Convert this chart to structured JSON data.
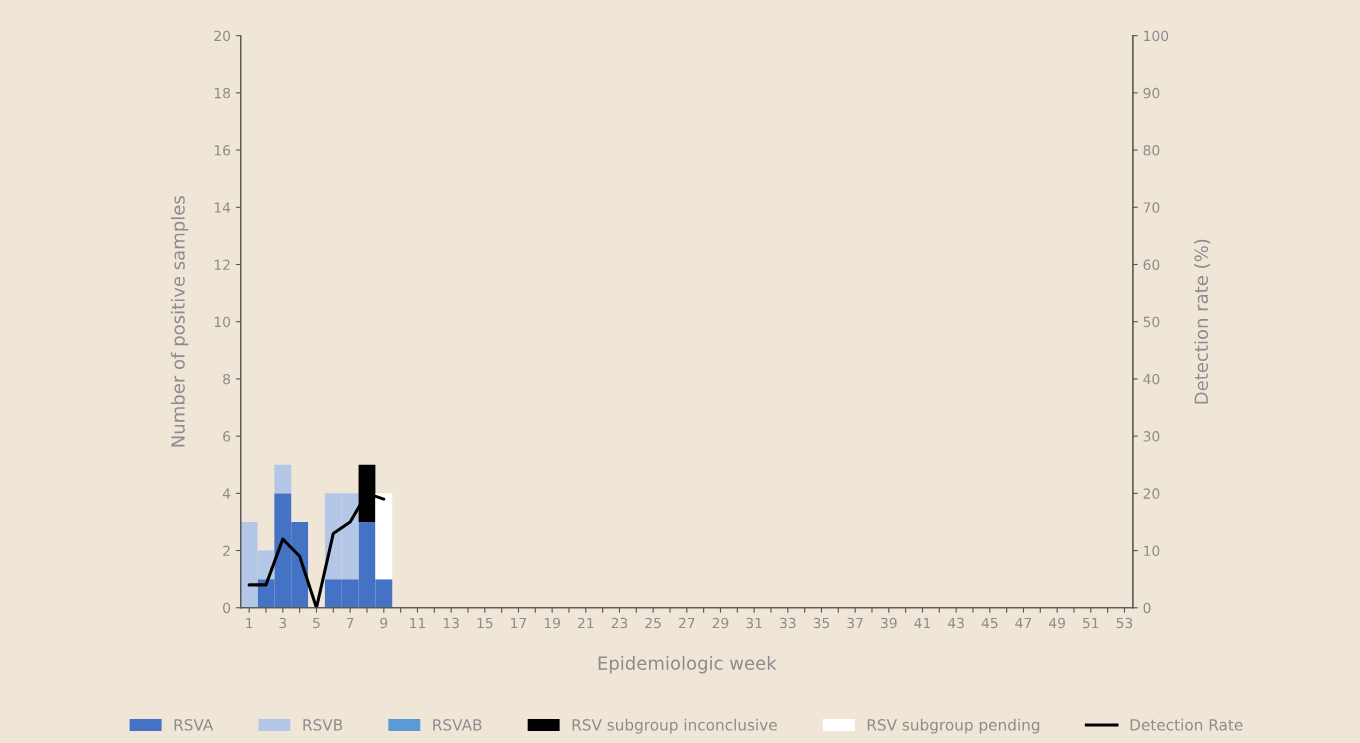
{
  "chart_data": {
    "type": "bar",
    "stacked": true,
    "xlabel": "Epidemiologic week",
    "ylabel": "Number of positive samples",
    "y2label": "Detection rate (%)",
    "categories": [
      "1",
      null,
      "3",
      null,
      "5",
      null,
      "7",
      null,
      "9",
      null,
      "11",
      null,
      "13",
      null,
      "15",
      null,
      "17",
      null,
      "19",
      null,
      "21",
      null,
      "23",
      null,
      "25",
      null,
      "27",
      null,
      "29",
      null,
      "31",
      null,
      "33",
      null,
      "35",
      null,
      "37",
      null,
      "39",
      null,
      "41",
      null,
      "43",
      null,
      "45",
      null,
      "47",
      null,
      "49",
      null,
      "51",
      null,
      "53"
    ],
    "ylim": [
      0,
      20
    ],
    "yticks": [
      0,
      2,
      4,
      6,
      8,
      10,
      12,
      14,
      16,
      18,
      20
    ],
    "y2lim": [
      0,
      100
    ],
    "y2ticks": [
      0,
      10,
      20,
      30,
      40,
      50,
      60,
      70,
      80,
      90,
      100
    ],
    "legend": "bottom",
    "grid": false,
    "series": [
      {
        "name": "RSVA",
        "color": "#4472c4",
        "values": [
          0,
          1,
          4,
          3,
          0,
          1,
          1,
          3,
          1,
          null,
          null,
          null,
          null,
          null,
          null,
          null,
          null,
          null,
          null,
          null,
          null,
          null,
          null,
          null,
          null,
          null,
          null,
          null,
          null,
          null,
          null,
          null,
          null,
          null,
          null,
          null,
          null,
          null,
          null,
          null,
          null,
          null,
          null,
          null,
          null,
          null,
          null,
          null,
          null,
          null,
          null,
          null,
          null
        ]
      },
      {
        "name": "RSVB",
        "color": "#b4c7e7",
        "values": [
          3,
          1,
          1,
          0,
          0,
          3,
          3,
          0,
          0,
          null,
          null,
          null,
          null,
          null,
          null,
          null,
          null,
          null,
          null,
          null,
          null,
          null,
          null,
          null,
          null,
          null,
          null,
          null,
          null,
          null,
          null,
          null,
          null,
          null,
          null,
          null,
          null,
          null,
          null,
          null,
          null,
          null,
          null,
          null,
          null,
          null,
          null,
          null,
          null,
          null,
          null,
          null,
          null
        ]
      },
      {
        "name": "RSVAB",
        "color": "#5b9bd5",
        "values": [
          0,
          0,
          0,
          0,
          0,
          0,
          0,
          0,
          0,
          null,
          null,
          null,
          null,
          null,
          null,
          null,
          null,
          null,
          null,
          null,
          null,
          null,
          null,
          null,
          null,
          null,
          null,
          null,
          null,
          null,
          null,
          null,
          null,
          null,
          null,
          null,
          null,
          null,
          null,
          null,
          null,
          null,
          null,
          null,
          null,
          null,
          null,
          null,
          null,
          null,
          null,
          null,
          null
        ]
      },
      {
        "name": "RSV subgroup inconclusive",
        "color": "#000000",
        "values": [
          0,
          0,
          0,
          0,
          0,
          0,
          0,
          2,
          0,
          null,
          null,
          null,
          null,
          null,
          null,
          null,
          null,
          null,
          null,
          null,
          null,
          null,
          null,
          null,
          null,
          null,
          null,
          null,
          null,
          null,
          null,
          null,
          null,
          null,
          null,
          null,
          null,
          null,
          null,
          null,
          null,
          null,
          null,
          null,
          null,
          null,
          null,
          null,
          null,
          null,
          null,
          null,
          null
        ]
      },
      {
        "name": "RSV subgroup pending",
        "color": "#ffffff",
        "values": [
          0,
          0,
          0,
          0,
          0,
          0,
          0,
          0,
          3,
          null,
          null,
          null,
          null,
          null,
          null,
          null,
          null,
          null,
          null,
          null,
          null,
          null,
          null,
          null,
          null,
          null,
          null,
          null,
          null,
          null,
          null,
          null,
          null,
          null,
          null,
          null,
          null,
          null,
          null,
          null,
          null,
          null,
          null,
          null,
          null,
          null,
          null,
          null,
          null,
          null,
          null,
          null,
          null
        ]
      },
      {
        "name": "Detection Rate",
        "type": "line",
        "axis": "y2",
        "color": "#000000",
        "values": [
          4,
          4,
          12,
          9,
          0,
          13,
          15,
          20,
          19,
          null,
          null,
          null,
          null,
          null,
          null,
          null,
          null,
          null,
          null,
          null,
          null,
          null,
          null,
          null,
          null,
          null,
          null,
          null,
          null,
          null,
          null,
          null,
          null,
          null,
          null,
          null,
          null,
          null,
          null,
          null,
          null,
          null,
          null,
          null,
          null,
          null,
          null,
          null,
          null,
          null,
          null,
          null,
          null
        ]
      }
    ]
  }
}
